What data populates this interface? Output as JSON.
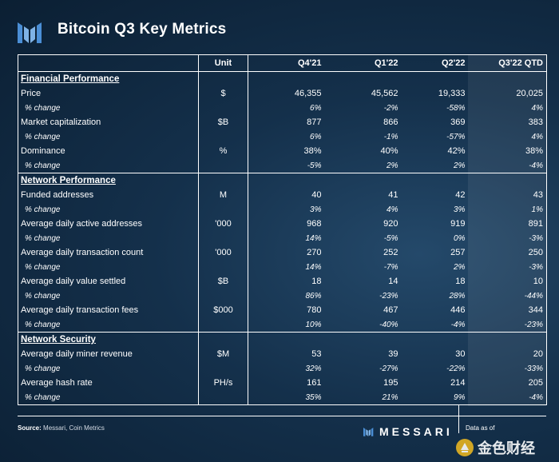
{
  "title": "Bitcoin Q3 Key Metrics",
  "chart_data": {
    "type": "table",
    "columns": [
      "",
      "Unit",
      "Q4'21",
      "Q1'22",
      "Q2'22",
      "Q3'22 QTD"
    ],
    "sections": [
      {
        "name": "Financial Performance",
        "rows": [
          {
            "label": "Price",
            "unit": "$",
            "values": [
              "46,355",
              "45,562",
              "19,333",
              "20,025"
            ]
          },
          {
            "label": "% change",
            "pct": true,
            "values": [
              "6%",
              "-2%",
              "-58%",
              "4%"
            ]
          },
          {
            "label": "Market capitalization",
            "unit": "$B",
            "values": [
              "877",
              "866",
              "369",
              "383"
            ]
          },
          {
            "label": "% change",
            "pct": true,
            "values": [
              "6%",
              "-1%",
              "-57%",
              "4%"
            ]
          },
          {
            "label": "Dominance",
            "unit": "%",
            "values": [
              "38%",
              "40%",
              "42%",
              "38%"
            ]
          },
          {
            "label": "% change",
            "pct": true,
            "values": [
              "-5%",
              "2%",
              "2%",
              "-4%"
            ]
          }
        ]
      },
      {
        "name": "Network Performance",
        "rows": [
          {
            "label": "Funded addresses",
            "unit": "M",
            "values": [
              "40",
              "41",
              "42",
              "43"
            ]
          },
          {
            "label": "% change",
            "pct": true,
            "values": [
              "3%",
              "4%",
              "3%",
              "1%"
            ]
          },
          {
            "label": "Average daily active addresses",
            "unit": "'000",
            "values": [
              "968",
              "920",
              "919",
              "891"
            ]
          },
          {
            "label": "% change",
            "pct": true,
            "values": [
              "14%",
              "-5%",
              "0%",
              "-3%"
            ]
          },
          {
            "label": "Average daily transaction count",
            "unit": "'000",
            "values": [
              "270",
              "252",
              "257",
              "250"
            ]
          },
          {
            "label": "% change",
            "pct": true,
            "values": [
              "14%",
              "-7%",
              "2%",
              "-3%"
            ]
          },
          {
            "label": "Average daily value settled",
            "unit": "$B",
            "values": [
              "18",
              "14",
              "18",
              "10"
            ]
          },
          {
            "label": "% change",
            "pct": true,
            "values": [
              "86%",
              "-23%",
              "28%",
              "-44%"
            ]
          },
          {
            "label": "Average daily transaction fees",
            "unit": "$000",
            "values": [
              "780",
              "467",
              "446",
              "344"
            ]
          },
          {
            "label": "% change",
            "pct": true,
            "values": [
              "10%",
              "-40%",
              "-4%",
              "-23%"
            ]
          }
        ]
      },
      {
        "name": "Network Security",
        "rows": [
          {
            "label": "Average daily miner revenue",
            "unit": "$M",
            "values": [
              "53",
              "39",
              "30",
              "20"
            ]
          },
          {
            "label": "% change",
            "pct": true,
            "values": [
              "32%",
              "-27%",
              "-22%",
              "-33%"
            ]
          },
          {
            "label": "Average hash rate",
            "unit": "PH/s",
            "values": [
              "161",
              "195",
              "214",
              "205"
            ]
          },
          {
            "label": "% change",
            "pct": true,
            "values": [
              "35%",
              "21%",
              "9%",
              "-4%"
            ]
          }
        ]
      }
    ]
  },
  "footer": {
    "source_label": "Source:",
    "source_text": "Messari, Coin Metrics",
    "brand": "MESSARI",
    "as_of": "Data as of",
    "watermark": "金色财经"
  },
  "colors": {
    "background": "#14304b",
    "text": "#ffffff",
    "accent_logo": "#4b8fd6"
  },
  "icons": {
    "logo": "messari-logo-icon",
    "watermark": "jinse-logo-icon"
  }
}
